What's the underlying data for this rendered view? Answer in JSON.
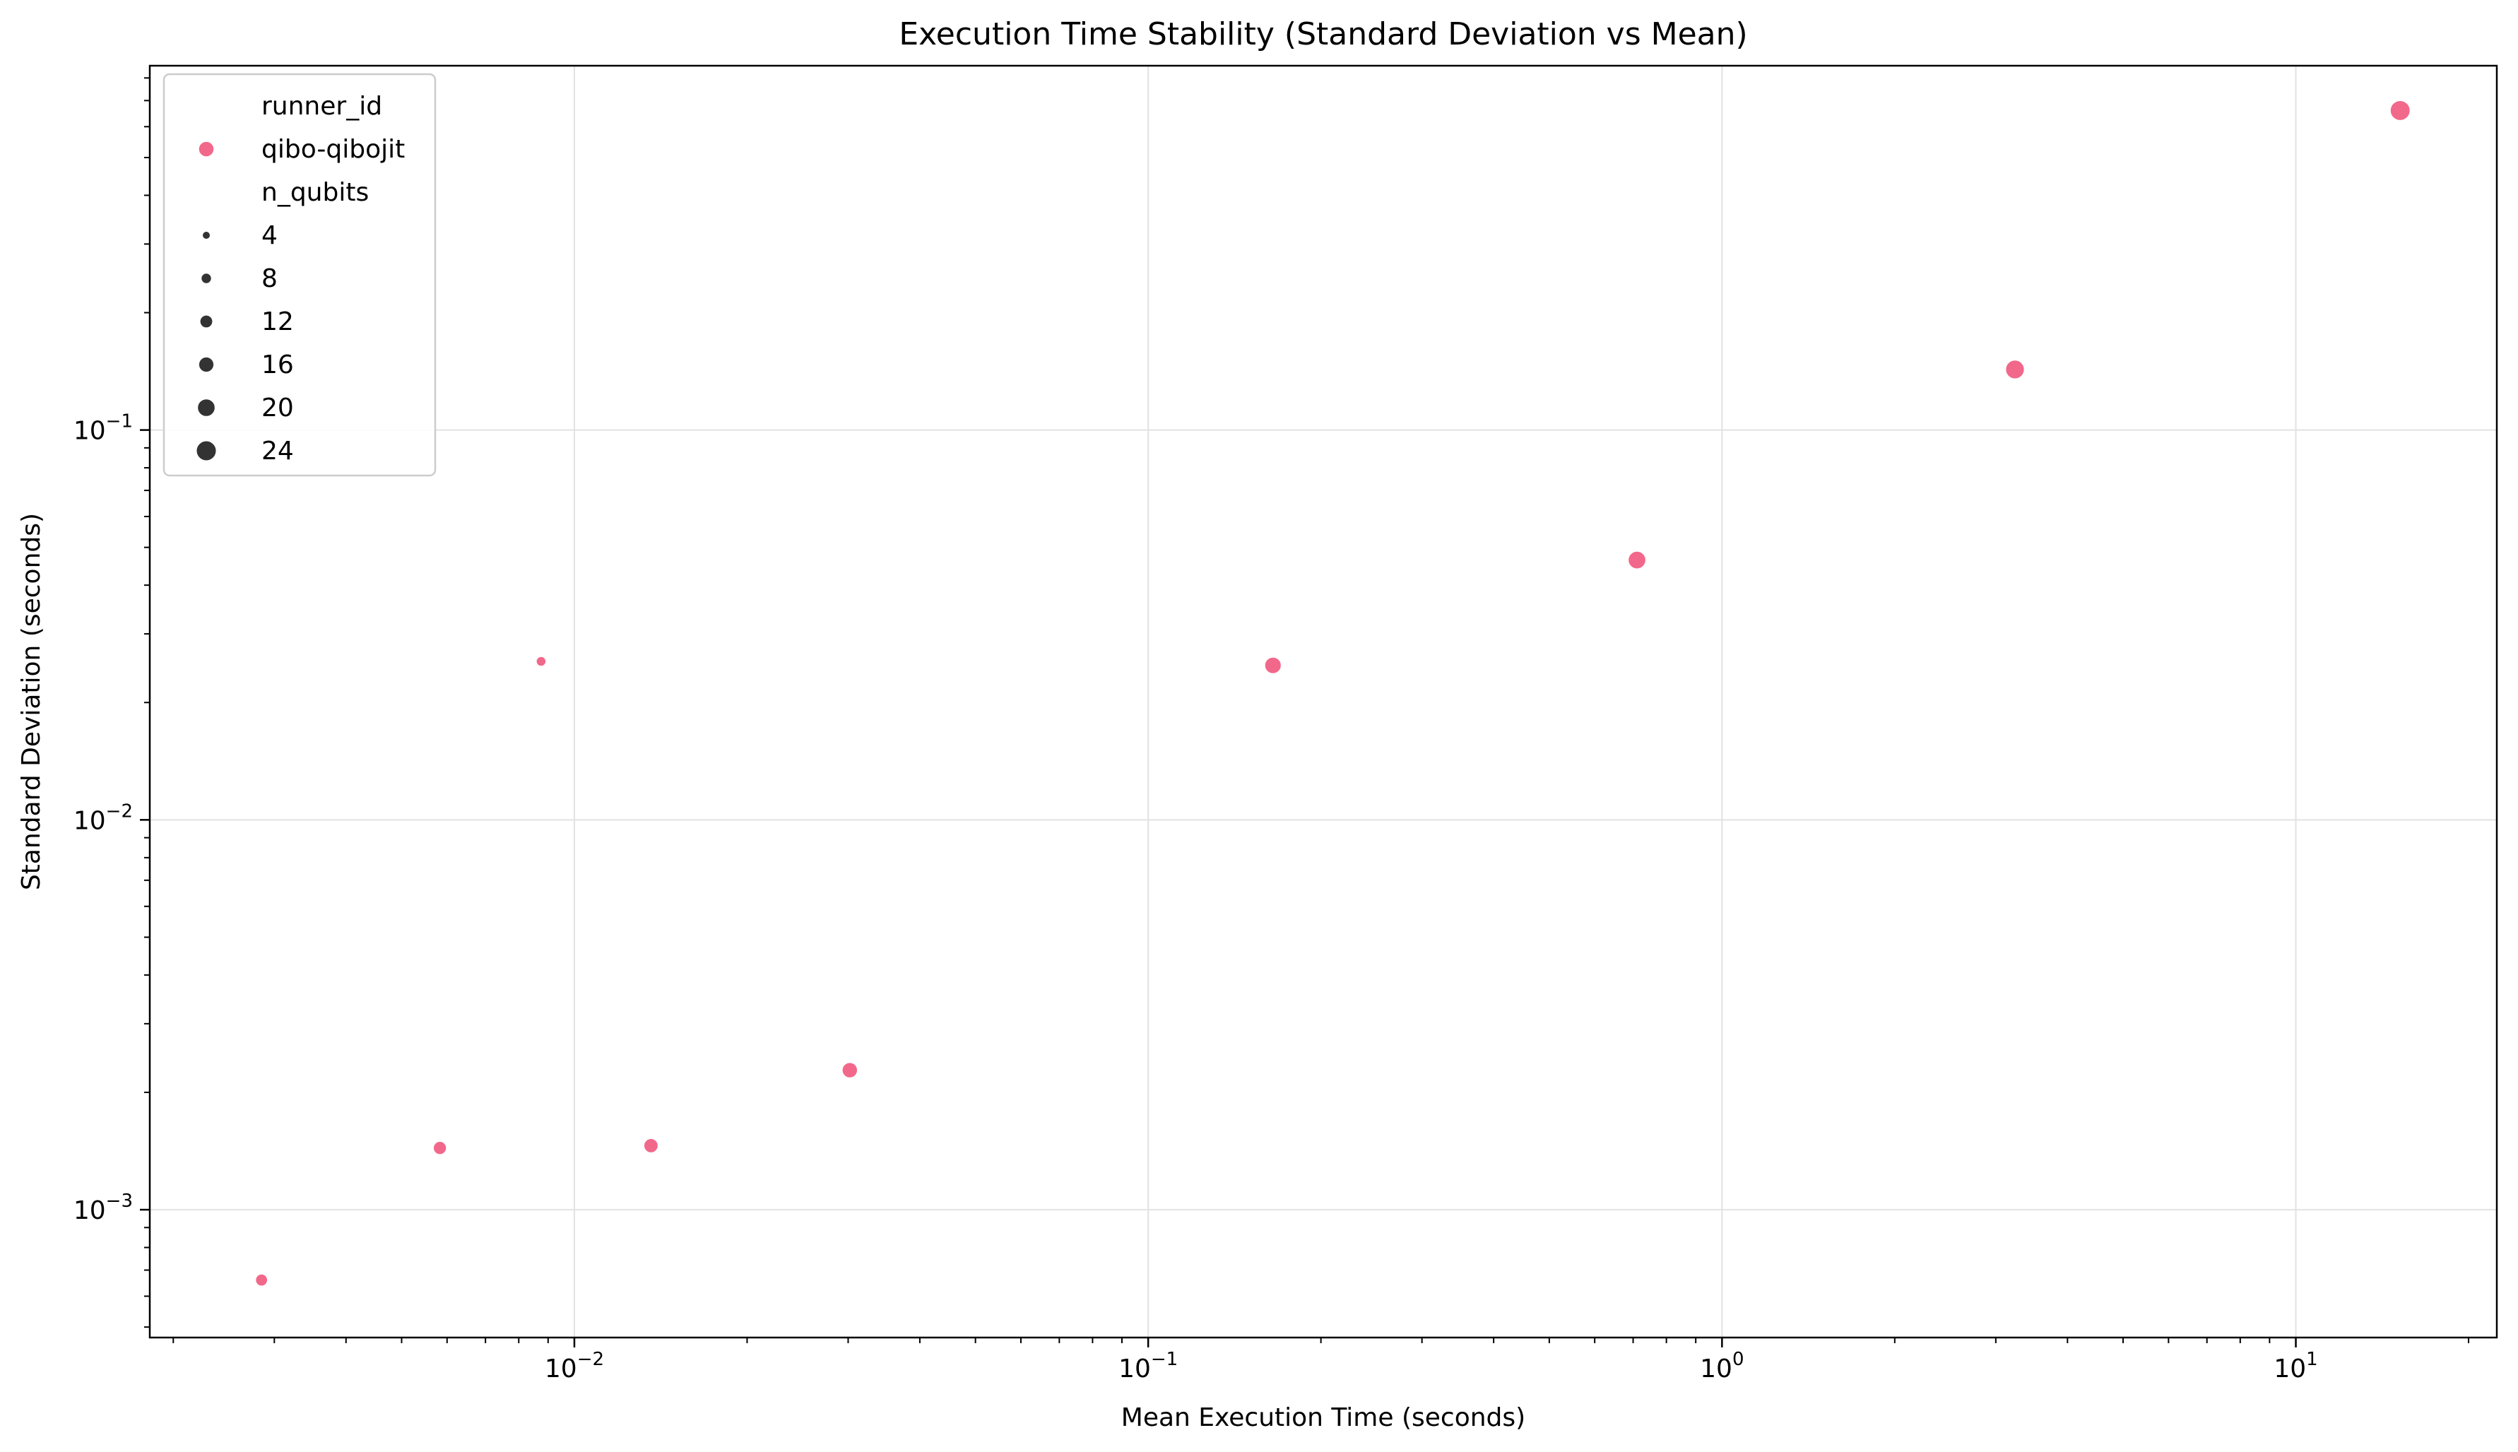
{
  "chart_data": {
    "type": "scatter",
    "title": "Execution Time Stability (Standard Deviation vs Mean)",
    "xlabel": "Mean Execution Time (seconds)",
    "ylabel": "Standard Deviation (seconds)",
    "xscale": "log",
    "yscale": "log",
    "xlim": [
      0.00182,
      22.4
    ],
    "ylim": [
      0.00047,
      0.86
    ],
    "x_ticks": [
      {
        "value": 0.01,
        "base": "10",
        "exp": "−2"
      },
      {
        "value": 0.1,
        "base": "10",
        "exp": "−1"
      },
      {
        "value": 1,
        "base": "10",
        "exp": "0"
      },
      {
        "value": 10,
        "base": "10",
        "exp": "1"
      }
    ],
    "y_ticks": [
      {
        "value": 0.001,
        "base": "10",
        "exp": "−3"
      },
      {
        "value": 0.01,
        "base": "10",
        "exp": "−2"
      },
      {
        "value": 0.1,
        "base": "10",
        "exp": "−1"
      }
    ],
    "grid": true,
    "legend": {
      "placement": "top-left",
      "hue_title": "runner_id",
      "hue_entries": [
        {
          "label": "qibo-qibojit",
          "color": "#f2688a"
        }
      ],
      "size_title": "n_qubits",
      "size_entries": [
        {
          "label": "4",
          "value": 4
        },
        {
          "label": "8",
          "value": 8
        },
        {
          "label": "12",
          "value": 12
        },
        {
          "label": "16",
          "value": 16
        },
        {
          "label": "20",
          "value": 20
        },
        {
          "label": "24",
          "value": 24
        }
      ]
    },
    "series": [
      {
        "name": "qibo-qibojit",
        "color": "#f2688a",
        "points": [
          {
            "x": 0.00285,
            "y": 0.00066,
            "n_qubits": 8
          },
          {
            "x": 0.00583,
            "y": 0.00144,
            "n_qubits": 10
          },
          {
            "x": 0.00875,
            "y": 0.0255,
            "n_qubits": 4
          },
          {
            "x": 0.0136,
            "y": 0.00146,
            "n_qubits": 12
          },
          {
            "x": 0.0302,
            "y": 0.00228,
            "n_qubits": 14
          },
          {
            "x": 0.165,
            "y": 0.0249,
            "n_qubits": 16
          },
          {
            "x": 0.711,
            "y": 0.0464,
            "n_qubits": 18
          },
          {
            "x": 3.24,
            "y": 0.143,
            "n_qubits": 20
          },
          {
            "x": 15.2,
            "y": 0.66,
            "n_qubits": 22
          }
        ]
      }
    ]
  }
}
